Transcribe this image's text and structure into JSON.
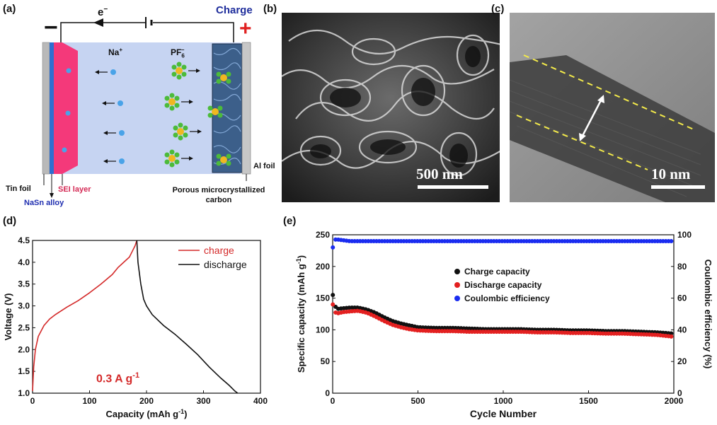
{
  "panels": {
    "a": {
      "letter": "(a)",
      "electron": "e",
      "electron_sup": "−",
      "charge": "Charge",
      "minus": "−",
      "plus": "+",
      "na_ion": "Na",
      "na_sup": "+",
      "pf6": "PF",
      "pf6_sub": "6",
      "pf6_sup": "−",
      "tin_foil": "Tin foil",
      "sei_layer": "SEI layer",
      "nasn_alloy": "NaSn alloy",
      "al_foil": "Al foil",
      "porous_1": "Porous microcrystallized",
      "porous_2": "carbon"
    },
    "b": {
      "letter": "(b)",
      "scale": "500 nm"
    },
    "c": {
      "letter": "(c)",
      "scale": "10 nm"
    },
    "d": {
      "letter": "(d)",
      "rate": "0.3 A g",
      "rate_sup": "-1"
    },
    "e": {
      "letter": "(e)"
    }
  },
  "colors": {
    "charge": "#d42a2a",
    "discharge": "#111111",
    "efficiency": "#1a2cf0",
    "electrolyte": "#c6d4f2",
    "sei": "#f4397a",
    "anode_blue": "#2f6fd1"
  },
  "chart_data": [
    {
      "type": "line",
      "panel": "d",
      "xlabel": "Capacity (mAh g",
      "xlabel_sup": "-1",
      "xlabel_end": ")",
      "ylabel": "Voltage (V)",
      "xlim": [
        0,
        400
      ],
      "ylim": [
        1.0,
        4.5
      ],
      "xticks": [
        "0",
        "100",
        "200",
        "300",
        "400"
      ],
      "yticks": [
        "1.0",
        "1.5",
        "2.0",
        "2.5",
        "3.0",
        "3.5",
        "4.0",
        "4.5"
      ],
      "legend": [
        "charge",
        "discharge"
      ],
      "series": [
        {
          "name": "charge",
          "x": [
            0,
            2,
            5,
            10,
            20,
            30,
            40,
            60,
            80,
            100,
            120,
            140,
            150,
            160,
            170,
            175,
            180,
            183
          ],
          "y": [
            1.05,
            1.6,
            2.0,
            2.3,
            2.55,
            2.7,
            2.8,
            2.97,
            3.12,
            3.3,
            3.5,
            3.72,
            3.88,
            4.0,
            4.12,
            4.25,
            4.38,
            4.5
          ]
        },
        {
          "name": "discharge",
          "x": [
            183,
            185,
            190,
            195,
            200,
            210,
            230,
            250,
            270,
            290,
            310,
            330,
            345,
            355,
            360
          ],
          "y": [
            4.5,
            4.0,
            3.5,
            3.15,
            3.0,
            2.8,
            2.55,
            2.35,
            2.12,
            1.88,
            1.6,
            1.35,
            1.18,
            1.05,
            1.0
          ]
        }
      ]
    },
    {
      "type": "scatter",
      "panel": "e",
      "xlabel": "Cycle Number",
      "ylabel_left": "Specific capacity (mAh g",
      "ylabel_left_sup": "-1",
      "ylabel_left_end": ")",
      "ylabel_right": "Coulombic efficiency (%)",
      "xlim": [
        0,
        2000
      ],
      "ylim_left": [
        0,
        250
      ],
      "ylim_right": [
        0,
        100
      ],
      "xticks": [
        "0",
        "500",
        "1000",
        "1500",
        "2000"
      ],
      "yticks_left": [
        "0",
        "50",
        "100",
        "150",
        "200",
        "250"
      ],
      "yticks_right": [
        "0",
        "20",
        "40",
        "60",
        "80",
        "100"
      ],
      "legend": [
        "Charge capacity",
        "Discharge capacity",
        "Coulombic efficiency"
      ],
      "series": [
        {
          "name": "Charge capacity",
          "axis": "left",
          "x": [
            1,
            10,
            30,
            60,
            100,
            150,
            200,
            250,
            300,
            350,
            400,
            450,
            500,
            600,
            700,
            800,
            900,
            1000,
            1100,
            1200,
            1300,
            1400,
            1500,
            1600,
            1700,
            1800,
            1900,
            2000
          ],
          "y": [
            155,
            138,
            133,
            134,
            135,
            135,
            132,
            127,
            120,
            114,
            110,
            107,
            104,
            103,
            103,
            102,
            101,
            101,
            101,
            100,
            100,
            99,
            99,
            98,
            98,
            97,
            96,
            94
          ]
        },
        {
          "name": "Discharge capacity",
          "axis": "left",
          "x": [
            1,
            10,
            30,
            60,
            100,
            150,
            200,
            250,
            300,
            350,
            400,
            450,
            500,
            600,
            700,
            800,
            900,
            1000,
            1100,
            1200,
            1300,
            1400,
            1500,
            1600,
            1700,
            1800,
            1900,
            2000
          ],
          "y": [
            140,
            128,
            126,
            128,
            129,
            130,
            127,
            121,
            114,
            108,
            104,
            101,
            99,
            98,
            98,
            97,
            97,
            97,
            97,
            96,
            96,
            95,
            95,
            94,
            94,
            93,
            92,
            89
          ]
        },
        {
          "name": "Coulombic efficiency",
          "axis": "right",
          "x": [
            1,
            10,
            30,
            100,
            300,
            500,
            800,
            1000,
            1300,
            1500,
            1800,
            2000
          ],
          "y": [
            92,
            97,
            97,
            96,
            96,
            96,
            96,
            96,
            96,
            96,
            96,
            96
          ]
        }
      ]
    }
  ]
}
